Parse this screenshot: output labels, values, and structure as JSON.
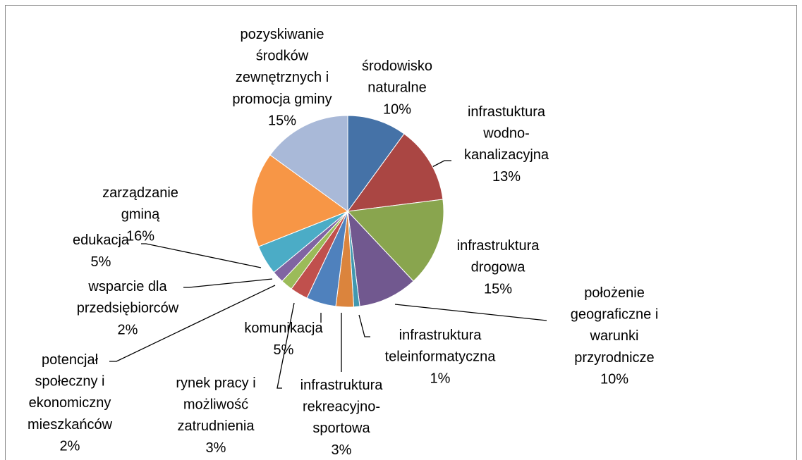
{
  "chart_data": {
    "type": "pie",
    "categories": [
      "środowisko naturalne",
      "infrastuktura wodno-kanalizacyjna",
      "infrastruktura drogowa",
      "położenie geograficzne i warunki przyrodnicze",
      "infrastruktura teleinformatyczna",
      "infrastruktura rekreacyjno-sportowa",
      "komunikacja",
      "rynek pracy i możliwość zatrudnienia",
      "potencjał społeczny i ekonomiczny mieszkańców",
      "wsparcie dla przedsiębiorców",
      "edukacja",
      "zarządzanie gminą",
      "pozyskiwanie środków zewnętrznych i promocja gminy"
    ],
    "values": [
      10,
      13,
      15,
      10,
      1,
      3,
      5,
      3,
      2,
      2,
      5,
      16,
      15
    ],
    "value_labels": [
      "10%",
      "13%",
      "15%",
      "10%",
      "1%",
      "3%",
      "5%",
      "3%",
      "2%",
      "2%",
      "5%",
      "16%",
      "15%"
    ],
    "colors": [
      "#4572a7",
      "#aa4643",
      "#89a54e",
      "#71588f",
      "#4198af",
      "#db843d",
      "#4f81bd",
      "#c0504d",
      "#9bbb59",
      "#8064a2",
      "#4bacc6",
      "#f79646",
      "#a9b9d8"
    ]
  }
}
